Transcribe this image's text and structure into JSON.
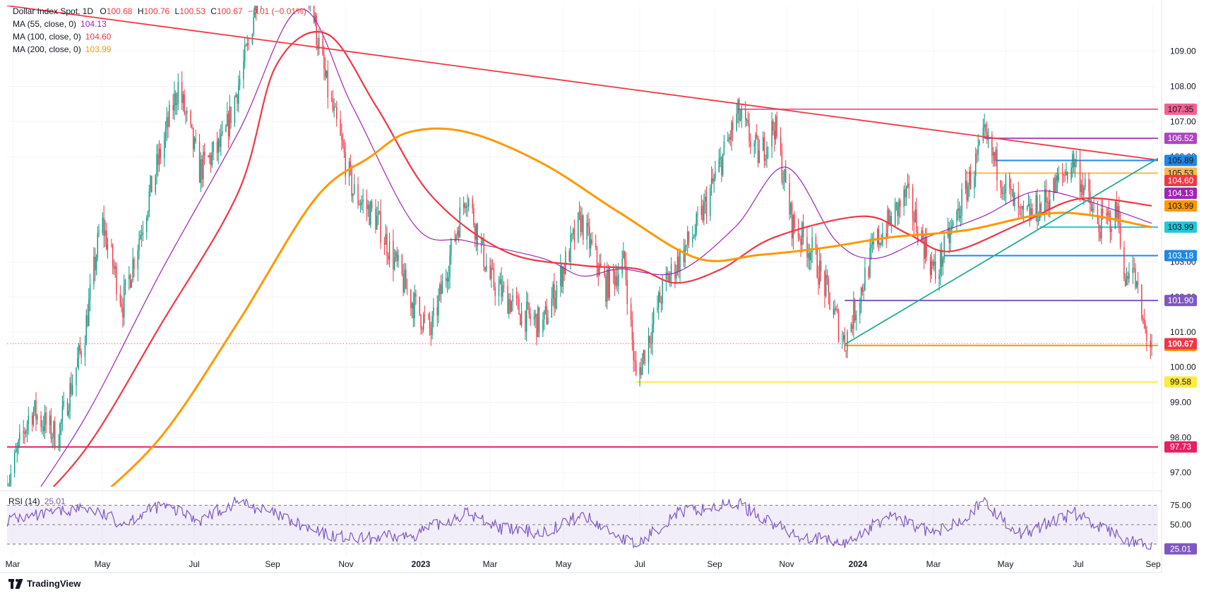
{
  "header": {
    "symbol": "Dollar Index Spot",
    "interval": "1D",
    "ohlc_labels": [
      "O",
      "H",
      "L",
      "C"
    ],
    "ohlc": [
      "100.68",
      "100.76",
      "100.53",
      "100.67"
    ],
    "change": "−0.01 (−0.01%)"
  },
  "indicators": [
    {
      "label": "MA (55, close, 0)",
      "value": "104.13",
      "color": "#9c27b0"
    },
    {
      "label": "MA (100, close, 0)",
      "value": "104.60",
      "color": "#f23645"
    },
    {
      "label": "MA (200, close, 0)",
      "value": "103.99",
      "color": "#ff9800"
    }
  ],
  "rsi": {
    "label": "RSI (14)",
    "value": "25.01",
    "color": "#7e57c2",
    "levels": [
      "75.00",
      "50.00"
    ],
    "badge": "25.01"
  },
  "brand": "TradingView",
  "chart_data": {
    "type": "candlestick",
    "title": "Dollar Index Spot, 1D",
    "x_labels": [
      "Mar",
      "May",
      "Jul",
      "Sep",
      "Nov",
      "2023",
      "Mar",
      "May",
      "Jul",
      "Sep",
      "Nov",
      "2024",
      "Mar",
      "May",
      "Jul",
      "Sep"
    ],
    "x_range": [
      "2022-03",
      "2024-09"
    ],
    "y_ticks": [
      "97.00",
      "98.00",
      "99.00",
      "100.00",
      "101.00",
      "102.00",
      "103.00",
      "106.00",
      "107.00",
      "108.00",
      "109.00"
    ],
    "ylim": [
      96.6,
      110.3
    ],
    "price_path": [
      [
        "2022-03-01",
        96.6
      ],
      [
        "2022-03-20",
        98.8
      ],
      [
        "2022-04-10",
        98.0
      ],
      [
        "2022-05-01",
        100.8
      ],
      [
        "2022-05-15",
        104.2
      ],
      [
        "2022-06-01",
        101.8
      ],
      [
        "2022-06-20",
        104.6
      ],
      [
        "2022-07-15",
        108.0
      ],
      [
        "2022-08-01",
        105.6
      ],
      [
        "2022-08-20",
        106.4
      ],
      [
        "2022-09-10",
        109.3
      ],
      [
        "2022-09-27",
        113.8
      ],
      [
        "2022-10-20",
        112.0
      ],
      [
        "2022-11-10",
        108.0
      ],
      [
        "2022-12-01",
        105.0
      ],
      [
        "2022-12-20",
        104.2
      ],
      [
        "2023-01-15",
        102.0
      ],
      [
        "2023-02-01",
        101.0
      ],
      [
        "2023-03-01",
        105.0
      ],
      [
        "2023-03-20",
        102.5
      ],
      [
        "2023-04-15",
        101.5
      ],
      [
        "2023-05-01",
        101.2
      ],
      [
        "2023-05-31",
        104.2
      ],
      [
        "2023-06-20",
        102.3
      ],
      [
        "2023-07-05",
        103.0
      ],
      [
        "2023-07-14",
        99.6
      ],
      [
        "2023-08-05",
        102.3
      ],
      [
        "2023-09-01",
        104.0
      ],
      [
        "2023-10-03",
        107.2
      ],
      [
        "2023-10-20",
        106.0
      ],
      [
        "2023-11-01",
        106.9
      ],
      [
        "2023-11-15",
        104.1
      ],
      [
        "2023-12-01",
        103.3
      ],
      [
        "2023-12-27",
        100.7
      ],
      [
        "2024-01-20",
        103.5
      ],
      [
        "2024-02-14",
        104.9
      ],
      [
        "2024-03-08",
        102.6
      ],
      [
        "2024-04-16",
        106.5
      ],
      [
        "2024-05-15",
        104.2
      ],
      [
        "2024-06-01",
        104.6
      ],
      [
        "2024-06-26",
        105.9
      ],
      [
        "2024-07-15",
        104.0
      ],
      [
        "2024-08-01",
        104.4
      ],
      [
        "2024-08-05",
        102.2
      ],
      [
        "2024-08-10",
        103.2
      ],
      [
        "2024-08-20",
        101.2
      ],
      [
        "2024-08-27",
        100.6
      ]
    ],
    "moving_averages": [
      {
        "name": "MA 55",
        "color": "#9c27b0",
        "path": [
          [
            "2022-03-01",
            95.2
          ],
          [
            "2022-05-01",
            98.5
          ],
          [
            "2022-07-01",
            102.7
          ],
          [
            "2022-09-01",
            106.7
          ],
          [
            "2022-10-20",
            110.2
          ],
          [
            "2022-12-01",
            107.4
          ],
          [
            "2023-01-20",
            104.0
          ],
          [
            "2023-03-01",
            103.6
          ],
          [
            "2023-05-01",
            103.1
          ],
          [
            "2023-06-01",
            102.6
          ],
          [
            "2023-07-01",
            102.8
          ],
          [
            "2023-08-15",
            102.7
          ],
          [
            "2023-10-01",
            104.0
          ],
          [
            "2023-11-10",
            105.7
          ],
          [
            "2023-12-20",
            103.6
          ],
          [
            "2024-01-20",
            103.1
          ],
          [
            "2024-03-01",
            103.7
          ],
          [
            "2024-04-15",
            104.3
          ],
          [
            "2024-05-25",
            105.0
          ],
          [
            "2024-07-01",
            104.8
          ],
          [
            "2024-08-27",
            104.1
          ]
        ]
      },
      {
        "name": "MA 100",
        "color": "#f23645",
        "path": [
          [
            "2022-03-01",
            95.3
          ],
          [
            "2022-05-01",
            97.6
          ],
          [
            "2022-07-01",
            101.2
          ],
          [
            "2022-09-01",
            105.0
          ],
          [
            "2022-10-01",
            108.6
          ],
          [
            "2022-11-10",
            109.5
          ],
          [
            "2022-12-20",
            107.4
          ],
          [
            "2023-02-01",
            104.9
          ],
          [
            "2023-04-01",
            103.3
          ],
          [
            "2023-06-01",
            102.9
          ],
          [
            "2023-07-15",
            102.8
          ],
          [
            "2023-08-15",
            102.4
          ],
          [
            "2023-09-20",
            102.8
          ],
          [
            "2023-11-01",
            103.7
          ],
          [
            "2024-01-10",
            104.3
          ],
          [
            "2024-02-15",
            103.8
          ],
          [
            "2024-03-20",
            103.3
          ],
          [
            "2024-05-15",
            104.1
          ],
          [
            "2024-07-01",
            104.8
          ],
          [
            "2024-08-27",
            104.6
          ]
        ]
      },
      {
        "name": "MA 200",
        "color": "#ff9800",
        "path": [
          [
            "2022-05-01",
            95.9
          ],
          [
            "2022-07-01",
            98.0
          ],
          [
            "2022-09-01",
            101.3
          ],
          [
            "2022-11-01",
            104.8
          ],
          [
            "2022-12-15",
            106.0
          ],
          [
            "2023-01-15",
            106.7
          ],
          [
            "2023-03-01",
            106.7
          ],
          [
            "2023-05-01",
            105.8
          ],
          [
            "2023-07-01",
            104.4
          ],
          [
            "2023-09-01",
            103.1
          ],
          [
            "2023-10-20",
            103.2
          ],
          [
            "2023-12-10",
            103.4
          ],
          [
            "2024-02-01",
            103.7
          ],
          [
            "2024-04-01",
            103.9
          ],
          [
            "2024-06-15",
            104.4
          ],
          [
            "2024-08-27",
            103.99
          ]
        ]
      }
    ],
    "trendlines": [
      {
        "name": "descending trendline",
        "color": "#f23645",
        "from": [
          "2022-03-01",
          110.3
        ],
        "to": [
          "2024-09-01",
          105.9
        ]
      },
      {
        "name": "ascending trendline",
        "color": "#22ab94",
        "from": [
          "2023-12-27",
          100.65
        ],
        "to": [
          "2024-09-01",
          105.95
        ]
      }
    ],
    "levels": [
      {
        "value": "107.35",
        "color": "#f06292",
        "from": "2023-10-03",
        "text_color": "#131722"
      },
      {
        "value": "106.52",
        "color": "#ab47bc",
        "from": "2024-04-16",
        "text_color": "#ffffff"
      },
      {
        "value": "105.89",
        "color": "#1e88e5",
        "from": "2024-04-25",
        "text_color": "#131722"
      },
      {
        "value": "105.53",
        "color": "#ffb74d",
        "from": "2024-04-01",
        "text_color": "#131722"
      },
      {
        "value": "103.99",
        "color": "#26c6da",
        "from": "2024-05-30",
        "text_color": "#131722"
      },
      {
        "value": "103.18",
        "color": "#1e88e5",
        "from": "2024-03-15",
        "text_color": "#ffffff"
      },
      {
        "value": "101.90",
        "color": "#7e57c2",
        "from": "2023-12-27",
        "text_color": "#ffffff"
      },
      {
        "value": "100.62",
        "color": "#ff9800",
        "from": "2023-12-27",
        "text_color": "#131722"
      },
      {
        "value": "99.58",
        "color": "#ffeb3b",
        "from": "2023-07-14",
        "text_color": "#131722"
      },
      {
        "value": "97.73",
        "color": "#e91e63",
        "from": "2022-03-01",
        "text_color": "#ffffff"
      }
    ],
    "ma_badges": [
      {
        "value": "104.60",
        "color": "#f23645",
        "text_color": "#ffffff"
      },
      {
        "value": "104.13",
        "color": "#9c27b0",
        "text_color": "#ffffff"
      },
      {
        "value": "103.99",
        "color": "#ff9800",
        "text_color": "#131722"
      }
    ],
    "last_price": {
      "value": "100.67",
      "color": "#f23645"
    },
    "rsi_path": [
      [
        "2022-03-01",
        55
      ],
      [
        "2022-04-01",
        60
      ],
      [
        "2022-05-01",
        68
      ],
      [
        "2022-06-01",
        52
      ],
      [
        "2022-07-01",
        70
      ],
      [
        "2022-08-01",
        55
      ],
      [
        "2022-09-01",
        74
      ],
      [
        "2022-10-01",
        60
      ],
      [
        "2022-11-01",
        42
      ],
      [
        "2022-12-01",
        35
      ],
      [
        "2023-01-15",
        38
      ],
      [
        "2023-03-01",
        62
      ],
      [
        "2023-04-01",
        45
      ],
      [
        "2023-05-01",
        42
      ],
      [
        "2023-06-01",
        60
      ],
      [
        "2023-07-14",
        28
      ],
      [
        "2023-08-15",
        62
      ],
      [
        "2023-10-03",
        72
      ],
      [
        "2023-11-15",
        40
      ],
      [
        "2023-12-27",
        30
      ],
      [
        "2024-02-01",
        60
      ],
      [
        "2024-03-08",
        40
      ],
      [
        "2024-04-16",
        72
      ],
      [
        "2024-05-15",
        40
      ],
      [
        "2024-06-26",
        62
      ],
      [
        "2024-08-05",
        35
      ],
      [
        "2024-08-27",
        25.01
      ]
    ]
  }
}
